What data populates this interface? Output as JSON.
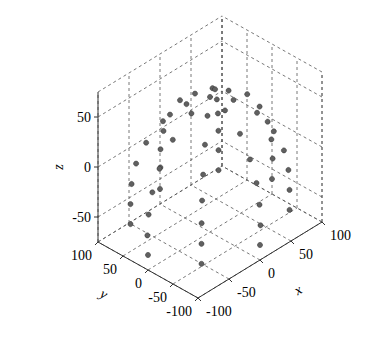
{
  "chart_data": {
    "type": "scatter3d",
    "x_label": "x",
    "y_label": "y",
    "z_label": "z",
    "xlim": [
      -100,
      100
    ],
    "ylim": [
      -100,
      100
    ],
    "zlim": [
      -75,
      75
    ],
    "xticks": [
      -100,
      -50,
      0,
      50,
      100
    ],
    "yticks": [
      -100,
      -50,
      0,
      50,
      100
    ],
    "zticks": [
      -50,
      0,
      50
    ],
    "grid": true,
    "color": "#606060",
    "marker": "circle",
    "x": [
      0,
      30,
      21,
      0,
      -21,
      -30,
      -21,
      0,
      21,
      60,
      42,
      0,
      -42,
      -60,
      -42,
      0,
      42,
      80,
      57,
      0,
      -57,
      -80,
      -57,
      0,
      57,
      93,
      66,
      0,
      -66,
      -93,
      -66,
      0,
      66,
      99,
      70,
      0,
      -70,
      -99,
      -70,
      0,
      70,
      101,
      71,
      0,
      -71,
      -101,
      -71,
      0,
      71,
      100,
      71,
      0,
      -71,
      -100,
      -71,
      0,
      71
    ],
    "y": [
      0,
      0,
      21,
      30,
      21,
      0,
      -21,
      -30,
      -21,
      0,
      42,
      60,
      42,
      0,
      -42,
      -60,
      -42,
      0,
      57,
      80,
      57,
      0,
      -57,
      -80,
      -57,
      0,
      66,
      93,
      66,
      0,
      -66,
      -93,
      -66,
      0,
      70,
      99,
      70,
      0,
      -70,
      -99,
      -70,
      0,
      71,
      101,
      71,
      0,
      -71,
      -101,
      -71,
      0,
      71,
      100,
      71,
      0,
      -71,
      -100,
      -71
    ],
    "z": [
      60,
      55,
      55,
      55,
      55,
      55,
      55,
      55,
      55,
      40,
      40,
      40,
      40,
      40,
      40,
      40,
      40,
      20,
      20,
      20,
      20,
      20,
      20,
      20,
      20,
      0,
      0,
      0,
      0,
      0,
      0,
      0,
      0,
      -20,
      -20,
      -20,
      -20,
      -20,
      -20,
      -20,
      -20,
      -40,
      -40,
      -40,
      -40,
      -40,
      -40,
      -40,
      -40,
      -60,
      -60,
      -60,
      -60,
      -60,
      -60,
      -60,
      -60
    ]
  }
}
